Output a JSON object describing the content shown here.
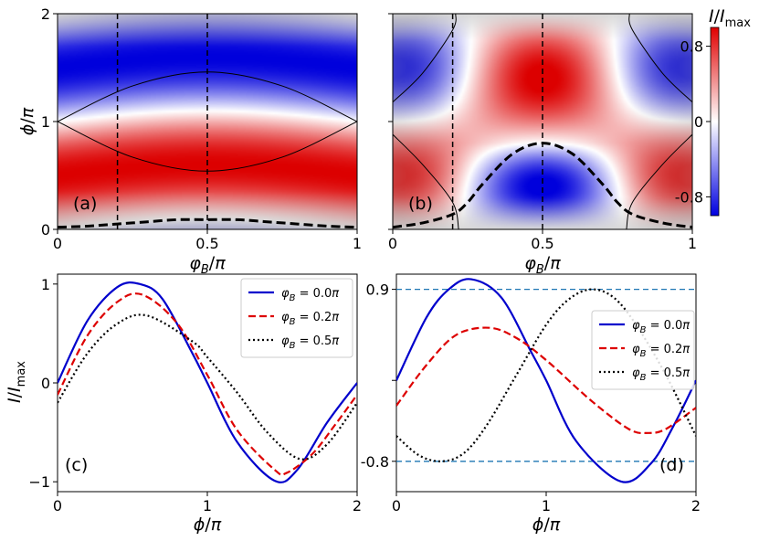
{
  "chart_data": [
    {
      "panel": "(a)",
      "type": "heatmap",
      "xlabel": "φ_B/π",
      "ylabel": "ϕ/π",
      "xlim": [
        0,
        1
      ],
      "ylim": [
        0,
        2
      ],
      "xticks": [
        "0",
        "0.5",
        "1"
      ],
      "yticks": [
        "0",
        "1",
        "2"
      ],
      "colormap": "bwr_shaded",
      "vertical_dashed_lines_x": [
        0.2,
        0.5
      ],
      "thick_dashed_curve": {
        "x": [
          0,
          0.1,
          0.2,
          0.3,
          0.4,
          0.5,
          0.6,
          0.7,
          0.8,
          0.9,
          1
        ],
        "y": [
          0.02,
          0.03,
          0.05,
          0.07,
          0.09,
          0.09,
          0.09,
          0.07,
          0.05,
          0.03,
          0.02
        ]
      },
      "thin_boundary_upper": {
        "x": [
          0,
          0.25,
          0.5,
          0.75,
          1
        ],
        "y": [
          1,
          1.33,
          1.46,
          1.33,
          1
        ]
      },
      "thin_boundary_lower": {
        "x": [
          0,
          0.25,
          0.5,
          0.75,
          1
        ],
        "y": [
          1,
          0.67,
          0.54,
          0.67,
          1
        ]
      }
    },
    {
      "panel": "(b)",
      "type": "heatmap",
      "xlabel": "φ_B/π",
      "ylabel": "",
      "xlim": [
        0,
        1
      ],
      "ylim": [
        0,
        2
      ],
      "xticks": [
        "0",
        "0.5",
        "1"
      ],
      "yticks": [],
      "colormap": "bwr_shaded",
      "vertical_dashed_lines_x": [
        0.2,
        0.5
      ],
      "thick_dashed_curve": {
        "x": [
          0,
          0.1,
          0.2,
          0.25,
          0.3,
          0.4,
          0.5,
          0.6,
          0.7,
          0.75,
          0.8,
          0.9,
          1
        ],
        "y": [
          0.02,
          0.06,
          0.14,
          0.25,
          0.42,
          0.7,
          0.8,
          0.7,
          0.42,
          0.25,
          0.14,
          0.06,
          0.02
        ]
      },
      "colorbar": {
        "label": "I/I_max",
        "ticks": [
          "0.8",
          "0",
          "-0.8"
        ],
        "range": [
          -1,
          1
        ]
      }
    },
    {
      "panel": "(c)",
      "type": "line",
      "xlabel": "ϕ/π",
      "ylabel": "I/I_max",
      "xlim": [
        0,
        2
      ],
      "ylim": [
        -1.1,
        1.1
      ],
      "xticks": [
        "0",
        "1",
        "2"
      ],
      "yticks": [
        "−1",
        "0",
        "1"
      ],
      "legend": "top-right",
      "series": [
        {
          "name": "φ_B = 0.0π",
          "color": "#0000cc",
          "style": "solid",
          "x": [
            0,
            0.2,
            0.4,
            0.55,
            0.7,
            0.9,
            1.0,
            1.2,
            1.45,
            1.6,
            1.8,
            2.0
          ],
          "y": [
            0,
            0.63,
            0.97,
            1.0,
            0.85,
            0.3,
            0,
            -0.6,
            -0.99,
            -0.88,
            -0.4,
            0
          ]
        },
        {
          "name": "φ_B = 0.2π",
          "color": "#dd0000",
          "style": "dashed",
          "x": [
            0,
            0.2,
            0.4,
            0.57,
            0.8,
            1.0,
            1.2,
            1.45,
            1.53,
            1.7,
            1.85,
            2.0
          ],
          "y": [
            -0.12,
            0.48,
            0.82,
            0.89,
            0.6,
            0.08,
            -0.48,
            -0.88,
            -0.91,
            -0.72,
            -0.43,
            -0.12
          ]
        },
        {
          "name": "φ_B = 0.5π",
          "color": "#000000",
          "style": "dotted",
          "x": [
            0,
            0.2,
            0.4,
            0.6,
            0.9,
            1.0,
            1.2,
            1.4,
            1.62,
            1.8,
            2.0
          ],
          "y": [
            -0.2,
            0.3,
            0.6,
            0.68,
            0.42,
            0.26,
            -0.1,
            -0.5,
            -0.77,
            -0.62,
            -0.2
          ]
        }
      ],
      "annotation": "(c)"
    },
    {
      "panel": "(d)",
      "type": "line",
      "xlabel": "ϕ/π",
      "ylabel": "",
      "xlim": [
        0,
        2
      ],
      "ylim": [
        -1.1,
        1.05
      ],
      "xticks": [
        "0",
        "1",
        "2"
      ],
      "yticks": [
        "-0.8",
        "0.9"
      ],
      "legend": "right",
      "reference_lines": [
        {
          "y": 0.9,
          "style": "dashed",
          "color": "#1f77b4"
        },
        {
          "y": -0.8,
          "style": "dashed",
          "color": "#1f77b4"
        }
      ],
      "series": [
        {
          "name": "φ_B = 0.0π",
          "color": "#0000cc",
          "style": "solid",
          "x": [
            0,
            0.2,
            0.35,
            0.5,
            0.7,
            0.9,
            1.0,
            1.2,
            1.5,
            1.7,
            1.85,
            2.0
          ],
          "y": [
            0,
            0.62,
            0.9,
            1.0,
            0.82,
            0.28,
            0,
            -0.6,
            -1.0,
            -0.82,
            -0.45,
            0
          ]
        },
        {
          "name": "φ_B = 0.2π",
          "color": "#dd0000",
          "style": "dashed",
          "x": [
            0,
            0.2,
            0.4,
            0.62,
            0.8,
            1.0,
            1.3,
            1.55,
            1.68,
            1.8,
            2.0
          ],
          "y": [
            -0.25,
            0.15,
            0.45,
            0.52,
            0.42,
            0.2,
            -0.2,
            -0.48,
            -0.52,
            -0.48,
            -0.27
          ]
        },
        {
          "name": "φ_B = 0.5π",
          "color": "#000000",
          "style": "dotted",
          "x": [
            0,
            0.15,
            0.3,
            0.45,
            0.6,
            0.8,
            1.0,
            1.15,
            1.3,
            1.45,
            1.6,
            1.8,
            2.0
          ],
          "y": [
            -0.55,
            -0.74,
            -0.8,
            -0.72,
            -0.45,
            0.05,
            0.55,
            0.8,
            0.9,
            0.82,
            0.55,
            0.05,
            -0.55
          ]
        }
      ],
      "annotation": "(d)"
    }
  ]
}
